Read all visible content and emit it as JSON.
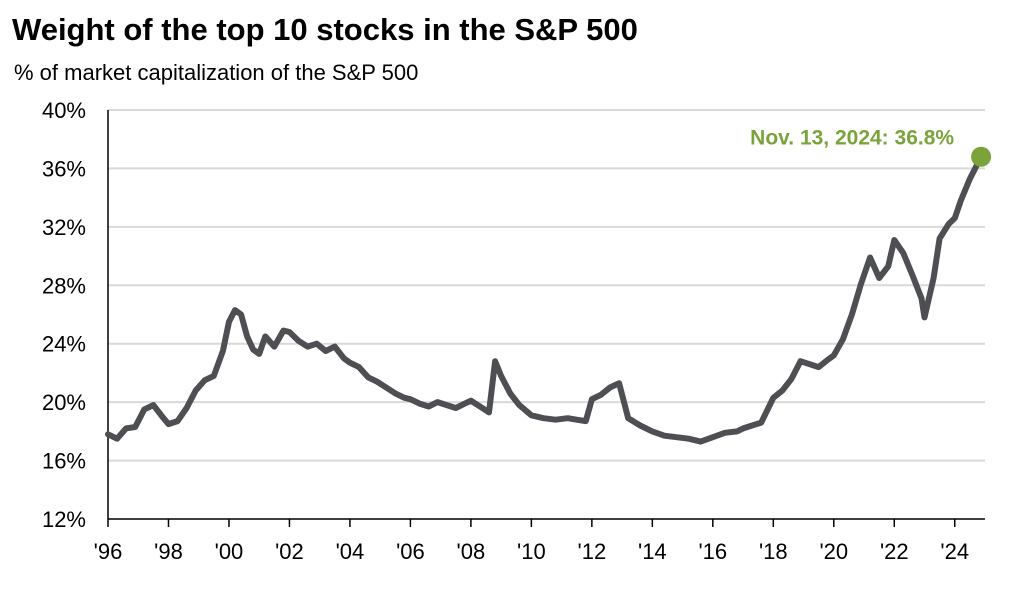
{
  "title": "Weight of the top 10 stocks in the S&P 500",
  "subtitle": "% of market capitalization of the S&P 500",
  "colors": {
    "line": "#4d4f53",
    "highlight": "#7ba33b",
    "grid": "#d9d9d9",
    "axis": "#000000"
  },
  "chart_data": {
    "type": "line",
    "title": "Weight of the top 10 stocks in the S&P 500",
    "subtitle": "% of market capitalization of the S&P 500",
    "xlabel": "",
    "ylabel": "",
    "xlim": [
      1996,
      2025.0
    ],
    "ylim": [
      12,
      40
    ],
    "y_ticks": [
      12,
      16,
      20,
      24,
      28,
      32,
      36,
      40
    ],
    "y_tick_labels": [
      "12%",
      "16%",
      "20%",
      "24%",
      "28%",
      "32%",
      "36%",
      "40%"
    ],
    "x_ticks": [
      1996,
      1998,
      2000,
      2002,
      2004,
      2006,
      2008,
      2010,
      2012,
      2014,
      2016,
      2018,
      2020,
      2022,
      2024
    ],
    "x_tick_labels": [
      "'96",
      "'98",
      "'00",
      "'02",
      "'04",
      "'06",
      "'08",
      "'10",
      "'12",
      "'14",
      "'16",
      "'18",
      "'20",
      "'22",
      "'24"
    ],
    "grid": "horizontal",
    "annotation": {
      "label": "Nov. 13, 2024: 36.8%",
      "x": 2024.87,
      "y": 36.8
    },
    "series": [
      {
        "x": [
          1996.0,
          1996.3,
          1996.6,
          1996.9,
          1997.2,
          1997.5,
          1997.8,
          1998.0,
          1998.3,
          1998.6,
          1998.9,
          1999.2,
          1999.5,
          1999.8,
          2000.0,
          2000.2,
          2000.4,
          2000.6,
          2000.8,
          2001.0,
          2001.2,
          2001.5,
          2001.8,
          2002.0,
          2002.3,
          2002.6,
          2002.9,
          2003.2,
          2003.5,
          2003.8,
          2004.0,
          2004.3,
          2004.6,
          2004.9,
          2005.2,
          2005.5,
          2005.8,
          2006.0,
          2006.3,
          2006.6,
          2006.9,
          2007.2,
          2007.5,
          2007.8,
          2008.0,
          2008.3,
          2008.6,
          2008.8,
          2009.0,
          2009.3,
          2009.6,
          2010.0,
          2010.4,
          2010.8,
          2011.2,
          2011.5,
          2011.8,
          2012.0,
          2012.3,
          2012.6,
          2012.9,
          2013.2,
          2013.6,
          2014.0,
          2014.4,
          2014.8,
          2015.2,
          2015.6,
          2016.0,
          2016.4,
          2016.8,
          2017.0,
          2017.3,
          2017.6,
          2018.0,
          2018.3,
          2018.6,
          2018.9,
          2019.2,
          2019.5,
          2019.8,
          2020.0,
          2020.3,
          2020.6,
          2020.9,
          2021.2,
          2021.5,
          2021.8,
          2022.0,
          2022.3,
          2022.6,
          2022.9,
          2023.0,
          2023.3,
          2023.5,
          2023.8,
          2024.0,
          2024.2,
          2024.5,
          2024.7,
          2024.87
        ],
        "values": [
          17.8,
          17.5,
          18.2,
          18.3,
          19.5,
          19.8,
          19.0,
          18.5,
          18.7,
          19.6,
          20.8,
          21.5,
          21.8,
          23.5,
          25.5,
          26.3,
          26.0,
          24.5,
          23.6,
          23.3,
          24.5,
          23.8,
          24.9,
          24.8,
          24.2,
          23.8,
          24.0,
          23.5,
          23.8,
          23.0,
          22.7,
          22.4,
          21.7,
          21.4,
          21.0,
          20.6,
          20.3,
          20.2,
          19.9,
          19.7,
          20.0,
          19.8,
          19.6,
          19.9,
          20.1,
          19.7,
          19.3,
          22.8,
          21.8,
          20.6,
          19.8,
          19.1,
          18.9,
          18.8,
          18.9,
          18.8,
          18.7,
          20.2,
          20.5,
          21.0,
          21.3,
          18.9,
          18.4,
          18.0,
          17.7,
          17.6,
          17.5,
          17.3,
          17.6,
          17.9,
          18.0,
          18.2,
          18.4,
          18.6,
          20.3,
          20.8,
          21.6,
          22.8,
          22.6,
          22.4,
          22.9,
          23.2,
          24.3,
          26.0,
          28.1,
          29.9,
          28.5,
          29.3,
          31.1,
          30.2,
          28.7,
          27.1,
          25.8,
          28.5,
          31.2,
          32.2,
          32.6,
          33.8,
          35.3,
          36.1,
          36.8
        ]
      }
    ]
  }
}
